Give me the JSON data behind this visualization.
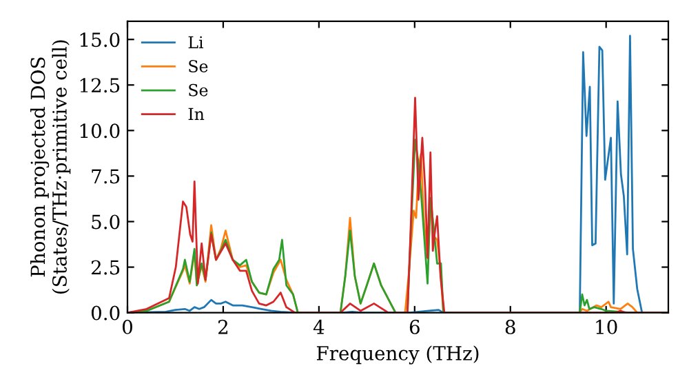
{
  "chart_data": {
    "type": "line",
    "xlabel": "Frequency (THz)",
    "ylabel": "Phonon projected DOS\n(States/THz·primitive cell)",
    "xlim": [
      0,
      11.3
    ],
    "ylim": [
      0,
      16
    ],
    "xticks": [
      0,
      2,
      4,
      6,
      8,
      10
    ],
    "yticks": [
      {
        "value": 0,
        "label": "0.0"
      },
      {
        "value": 2.5,
        "label": "2.5"
      },
      {
        "value": 5,
        "label": "5.0"
      },
      {
        "value": 7.5,
        "label": "7.5"
      },
      {
        "value": 10,
        "label": "10.0"
      },
      {
        "value": 12.5,
        "label": "12.5"
      },
      {
        "value": 15,
        "label": "15.0"
      }
    ],
    "legend": "top left",
    "grid": false,
    "marker": "none",
    "line_style": "solid",
    "series": [
      {
        "name": "Li",
        "color": "#1f77b4",
        "x": [
          0,
          0.8,
          1.0,
          1.2,
          1.3,
          1.4,
          1.5,
          1.6,
          1.75,
          1.85,
          1.95,
          2.05,
          2.2,
          2.4,
          2.6,
          2.8,
          3.0,
          3.2,
          3.5,
          4.5,
          4.7,
          4.9,
          5.9,
          6.3,
          6.5,
          6.6,
          9.45,
          9.52,
          9.59,
          9.66,
          9.71,
          9.78,
          9.86,
          9.92,
          9.98,
          10.1,
          10.16,
          10.24,
          10.31,
          10.37,
          10.44,
          10.5,
          10.56,
          10.65,
          10.75,
          11.3
        ],
        "values": [
          0,
          0.05,
          0.15,
          0.2,
          0.1,
          0.3,
          0.2,
          0.3,
          0.7,
          0.5,
          0.5,
          0.6,
          0.4,
          0.4,
          0.3,
          0.2,
          0.1,
          0.05,
          0,
          0,
          0.05,
          0,
          0,
          0.1,
          0.15,
          0,
          0,
          14.3,
          9.7,
          12.4,
          3.7,
          3.8,
          14.6,
          14.4,
          7.3,
          9.6,
          0.5,
          11.6,
          7.6,
          6.4,
          3.2,
          15.2,
          3.5,
          1.3,
          0,
          0
        ]
      },
      {
        "name": "Se",
        "color": "#ff7f0e",
        "x": [
          0,
          0.4,
          0.87,
          1.16,
          1.2,
          1.3,
          1.4,
          1.45,
          1.55,
          1.63,
          1.75,
          1.85,
          1.95,
          2.05,
          2.2,
          2.35,
          2.48,
          2.6,
          2.75,
          2.9,
          3.05,
          3.2,
          3.32,
          3.46,
          3.56,
          4.45,
          4.55,
          4.65,
          4.75,
          4.87,
          5.0,
          5.15,
          5.3,
          5.6,
          5.8,
          5.88,
          5.98,
          6.03,
          6.08,
          6.13,
          6.2,
          6.27,
          6.35,
          6.4,
          6.47,
          6.53,
          6.6,
          9.45,
          9.5,
          9.6,
          9.8,
          9.9,
          10.05,
          10.1,
          10.3,
          10.45,
          10.55,
          10.65,
          11.3
        ],
        "values": [
          0,
          0.1,
          0.6,
          2.3,
          2.6,
          1.6,
          3.3,
          1.5,
          2.6,
          1.7,
          4.8,
          2.9,
          3.5,
          4.5,
          2.9,
          2.5,
          2.6,
          1.7,
          1.1,
          1.0,
          2.2,
          2.9,
          1.8,
          1.0,
          0,
          0,
          2.0,
          5.2,
          2.0,
          0.5,
          1.5,
          2.7,
          1.5,
          0,
          0,
          2.2,
          5.6,
          5.2,
          7.9,
          8.7,
          4.8,
          3.1,
          6.1,
          4.2,
          4.0,
          2.6,
          0,
          0,
          0.2,
          0.1,
          0.4,
          0.3,
          0.6,
          0.3,
          0.2,
          0.5,
          0.3,
          0,
          0
        ]
      },
      {
        "name": "Se",
        "color": "#2ca02c",
        "x": [
          0,
          0.4,
          0.87,
          1.16,
          1.2,
          1.3,
          1.4,
          1.45,
          1.55,
          1.63,
          1.75,
          1.85,
          1.95,
          2.05,
          2.2,
          2.35,
          2.48,
          2.6,
          2.75,
          2.9,
          3.05,
          3.17,
          3.23,
          3.32,
          3.46,
          3.56,
          4.45,
          4.55,
          4.65,
          4.75,
          4.87,
          5.0,
          5.15,
          5.3,
          5.6,
          5.85,
          5.92,
          6.01,
          6.08,
          6.15,
          6.27,
          6.33,
          6.4,
          6.47,
          6.55,
          6.6,
          9.45,
          9.5,
          9.55,
          9.6,
          9.65,
          9.75,
          9.9,
          10.0,
          10.5,
          11.3
        ],
        "values": [
          0,
          0.1,
          0.6,
          2.4,
          2.9,
          1.7,
          3.5,
          1.5,
          2.7,
          1.8,
          4.4,
          2.9,
          3.4,
          4.0,
          2.9,
          2.6,
          2.9,
          1.7,
          1.1,
          1.0,
          2.4,
          2.9,
          4.0,
          1.5,
          1.0,
          0,
          0,
          2.0,
          4.5,
          2.0,
          0.5,
          1.5,
          2.7,
          1.5,
          0,
          0,
          4.5,
          9.5,
          8.2,
          6.0,
          1.6,
          6.3,
          4.6,
          2.7,
          2.7,
          0,
          0,
          1.0,
          0.4,
          0.7,
          0.2,
          0.3,
          0.2,
          0.1,
          0,
          0
        ]
      },
      {
        "name": "In",
        "color": "#d62728",
        "x": [
          0,
          0.4,
          0.87,
          1.01,
          1.16,
          1.23,
          1.31,
          1.36,
          1.4,
          1.47,
          1.55,
          1.63,
          1.75,
          1.85,
          2.05,
          2.2,
          2.35,
          2.48,
          2.6,
          2.75,
          2.9,
          3.05,
          3.2,
          3.32,
          3.5,
          4.45,
          4.65,
          4.87,
          5.15,
          5.45,
          5.85,
          5.92,
          6.01,
          6.08,
          6.16,
          6.22,
          6.27,
          6.33,
          6.38,
          6.43,
          6.47,
          6.54,
          6.62,
          10.2,
          10.3,
          10.4,
          11.3
        ],
        "values": [
          0,
          0.2,
          0.8,
          2.5,
          6.1,
          5.8,
          4.3,
          3.9,
          7.2,
          1.6,
          3.8,
          1.8,
          4.3,
          2.9,
          3.8,
          2.9,
          2.3,
          2.3,
          1.2,
          0.5,
          0.4,
          0.6,
          1.1,
          0.3,
          0,
          0,
          0.5,
          0.1,
          0.5,
          0,
          0,
          4.8,
          11.8,
          6.2,
          9.6,
          6.8,
          3.0,
          8.8,
          3.4,
          4.6,
          5.3,
          2.0,
          0,
          0,
          0.1,
          0,
          0
        ]
      }
    ]
  }
}
